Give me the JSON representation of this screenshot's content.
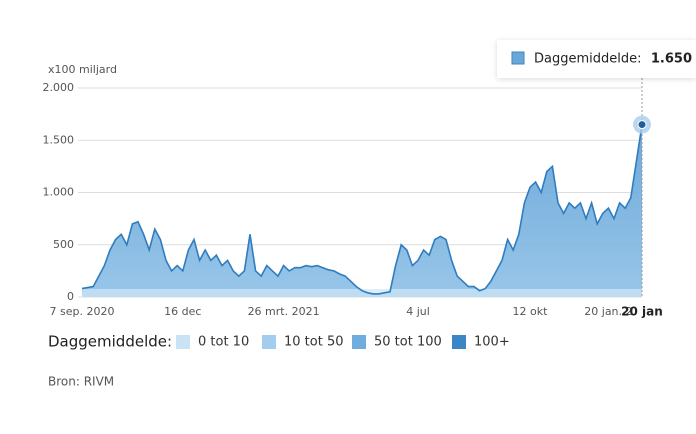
{
  "chart_data": {
    "type": "area",
    "y_unit_label": "x100 miljard",
    "categories": [
      "7 sep. 2020",
      null,
      null,
      null,
      null,
      null,
      null,
      null,
      null,
      null,
      null,
      null,
      null,
      null,
      null,
      null,
      null,
      null,
      "16 dec",
      null,
      null,
      null,
      null,
      null,
      null,
      null,
      null,
      null,
      null,
      null,
      null,
      null,
      null,
      null,
      null,
      null,
      "26 mrt. 2021",
      null,
      null,
      null,
      null,
      null,
      null,
      null,
      null,
      null,
      null,
      null,
      null,
      null,
      null,
      null,
      null,
      null,
      null,
      null,
      null,
      null,
      null,
      null,
      "4 jul",
      null,
      null,
      null,
      null,
      null,
      null,
      null,
      null,
      null,
      null,
      null,
      null,
      null,
      null,
      null,
      null,
      null,
      null,
      null,
      "12 okt",
      null,
      null,
      null,
      null,
      null,
      null,
      null,
      null,
      null,
      null,
      null,
      null,
      null,
      "20 jan. 2",
      null,
      null,
      null,
      null,
      null,
      "20 jan"
    ],
    "values": [
      80,
      90,
      100,
      200,
      300,
      450,
      550,
      600,
      500,
      700,
      720,
      600,
      450,
      650,
      550,
      350,
      250,
      300,
      250,
      450,
      550,
      350,
      450,
      350,
      400,
      300,
      350,
      250,
      200,
      250,
      600,
      250,
      200,
      300,
      250,
      200,
      300,
      250,
      280,
      280,
      300,
      290,
      300,
      280,
      260,
      250,
      220,
      200,
      150,
      100,
      60,
      40,
      30,
      30,
      40,
      50,
      300,
      500,
      450,
      300,
      350,
      450,
      400,
      550,
      580,
      550,
      350,
      200,
      150,
      100,
      100,
      60,
      80,
      150,
      250,
      350,
      550,
      450,
      600,
      900,
      1050,
      1100,
      1000,
      1200,
      1250,
      900,
      800,
      900,
      850,
      900,
      750,
      900,
      700,
      800,
      850,
      750,
      900,
      850,
      950,
      1300,
      1650
    ],
    "color": "#2f7cbf",
    "fill": "#7fb6df",
    "ylim": [
      0,
      2000
    ],
    "yticks": [
      0,
      500,
      {
        "value": 1000,
        "label": "1.000"
      },
      {
        "value": 1500,
        "label": "1.500"
      },
      {
        "value": 2000,
        "label": "2.000"
      }
    ],
    "grid": true,
    "tooltip": {
      "label": "Daggemiddelde:",
      "value_label": "1.650"
    },
    "legend": {
      "title": "Daggemiddelde:",
      "items": [
        {
          "label": "0 tot 10",
          "color": "#c9e3f5"
        },
        {
          "label": "10 tot 50",
          "color": "#a3cdee"
        },
        {
          "label": "50 tot 100",
          "color": "#6fadde"
        },
        {
          "label": "100+",
          "color": "#3d86c6"
        }
      ]
    },
    "source": "Bron: RIVM"
  }
}
